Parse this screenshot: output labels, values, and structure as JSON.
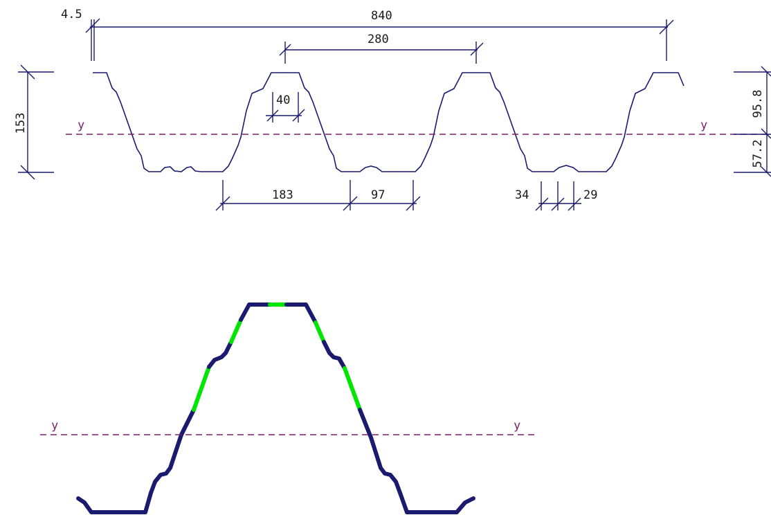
{
  "colors": {
    "profile": "#1a1a6e",
    "dimension": "#1a1a6e",
    "axis": "#7a1f6e",
    "effective": "#00e600",
    "text": "#1a1a1a"
  },
  "dimensions": {
    "thickness": "4.5",
    "total_width": "840",
    "pitch": "280",
    "top_flange_stiffener": "40",
    "height": "153",
    "bottom_width": "183",
    "bottom_flange": "97",
    "stiffener_a": "34",
    "stiffener_b": "29",
    "upper_to_axis": "95.8",
    "lower_to_axis": "57.2"
  },
  "axis_labels": {
    "top_left": "y",
    "top_right": "y",
    "bottom_left": "y",
    "bottom_right": "y"
  }
}
